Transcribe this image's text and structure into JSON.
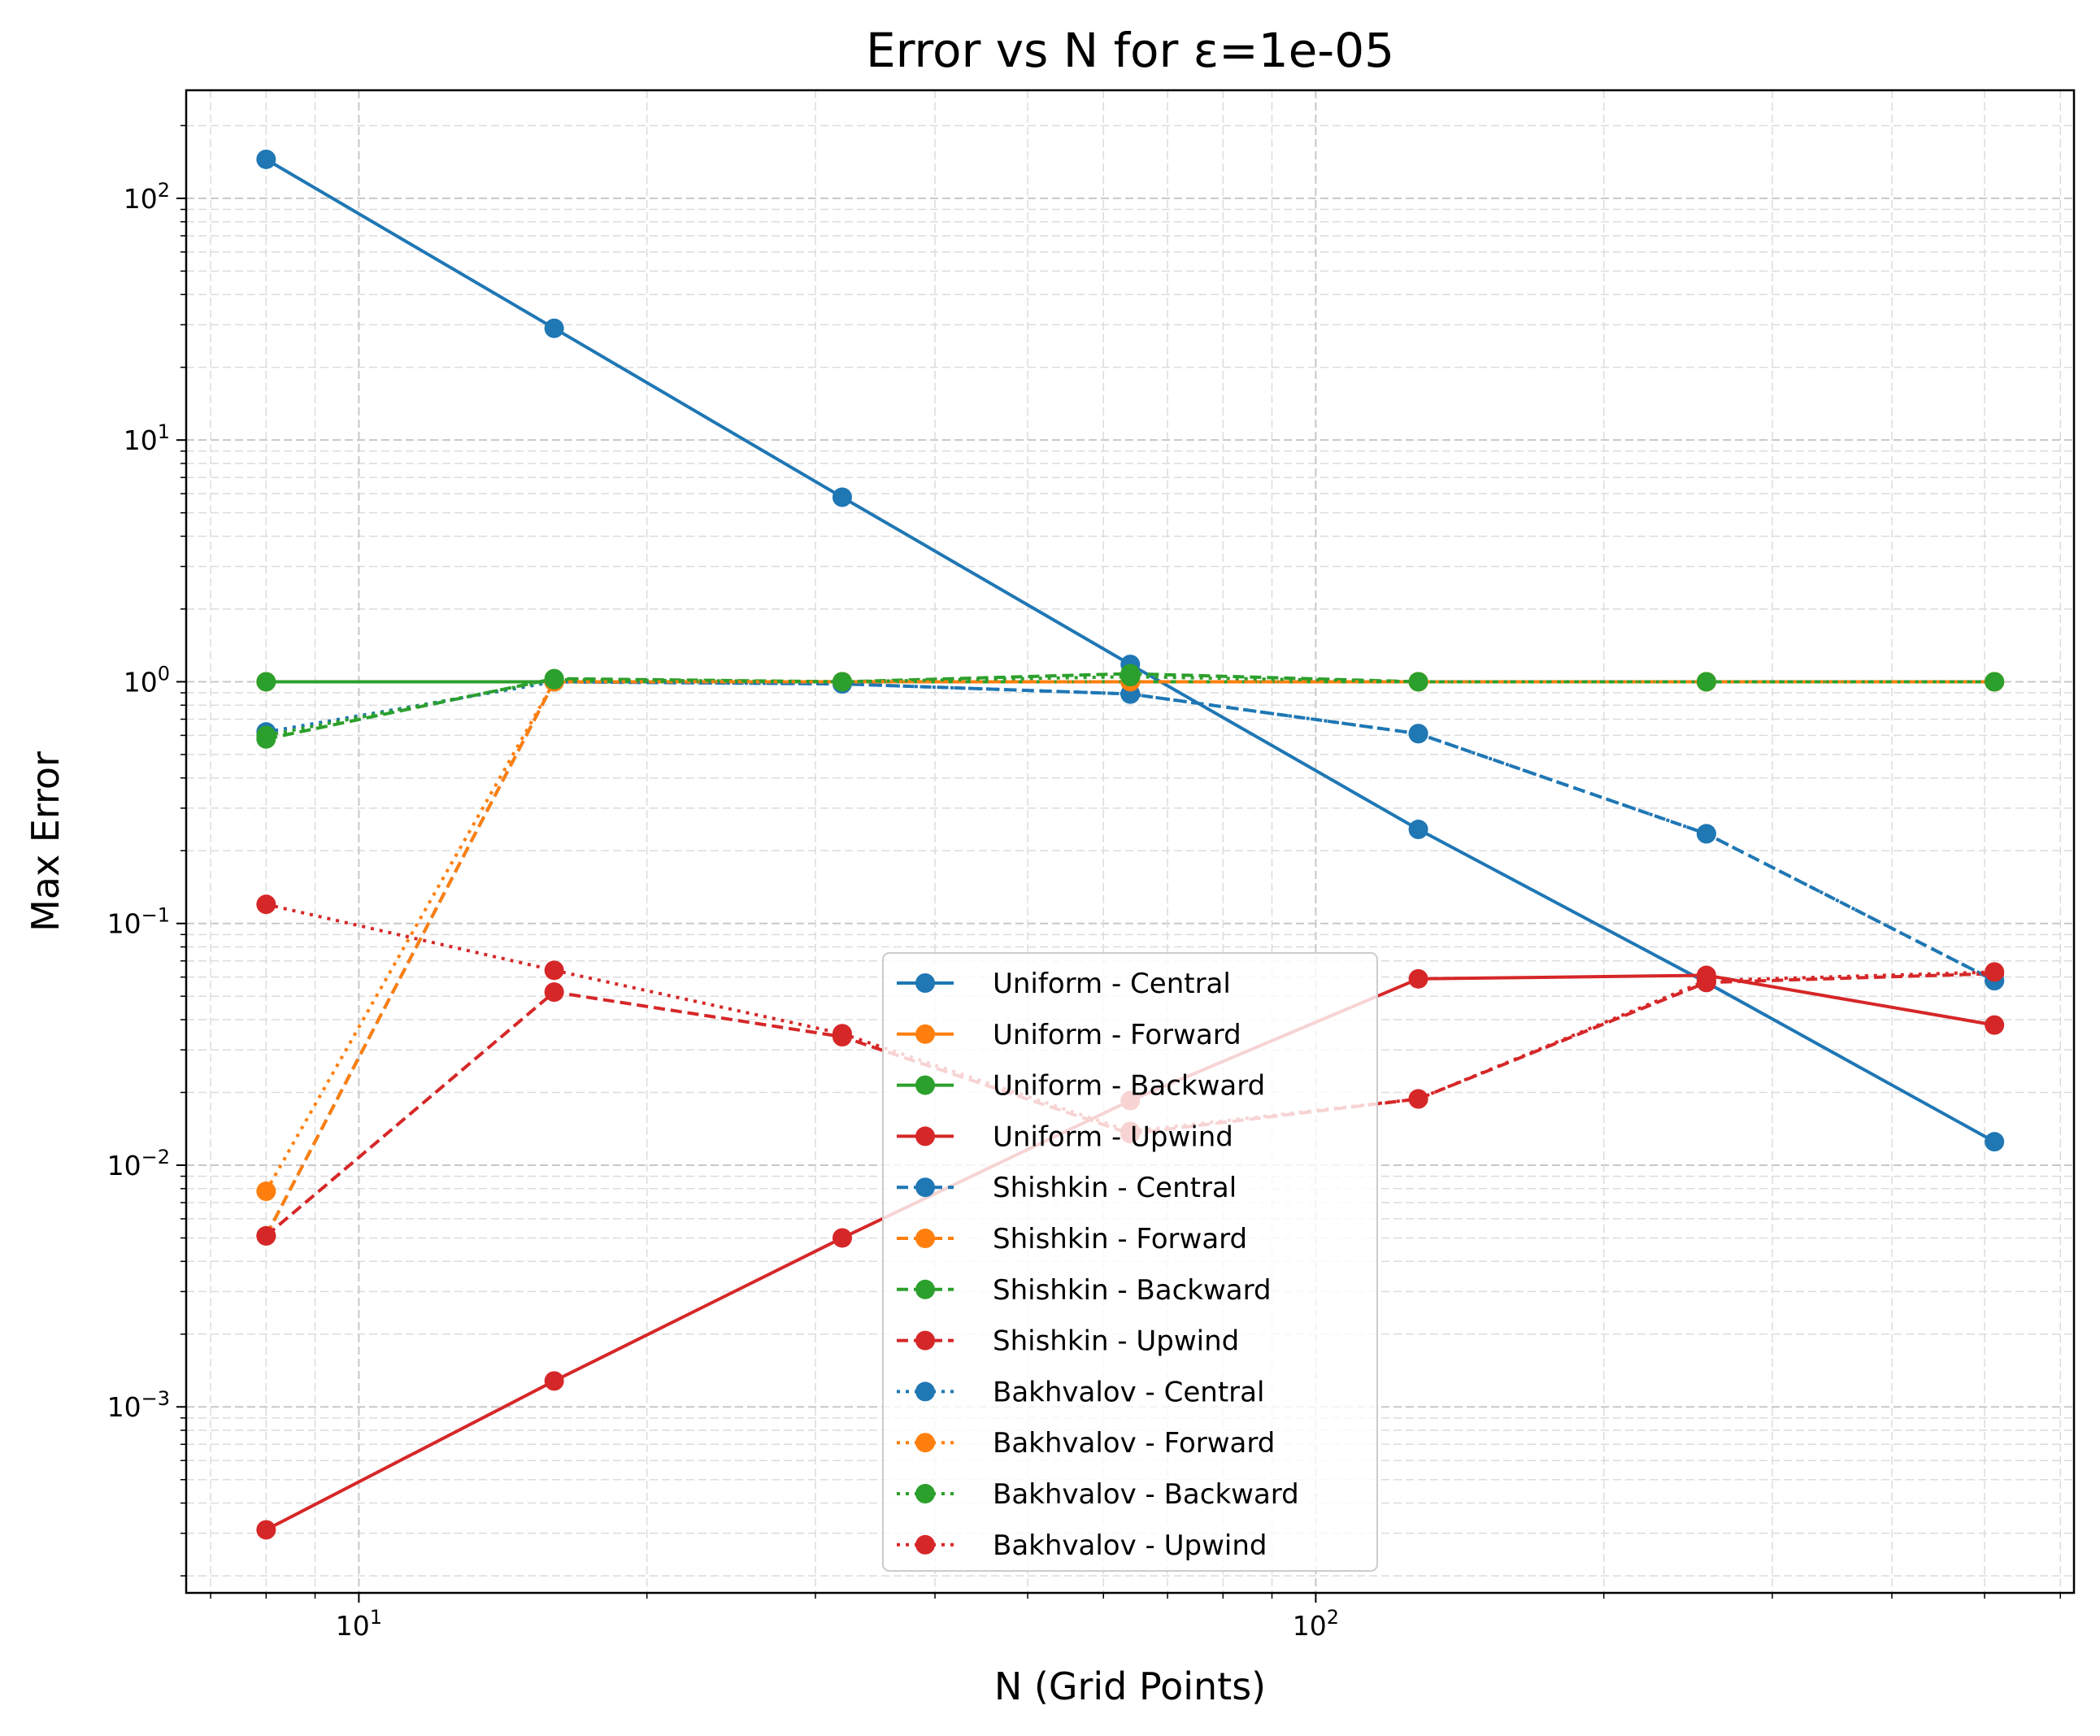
{
  "chart_data": {
    "type": "line",
    "title": "Error vs N for ε=1e-05",
    "xlabel": "N (Grid Points)",
    "ylabel": "Max Error",
    "xscale": "log",
    "yscale": "log",
    "xlim": [
      6.6,
      620
    ],
    "ylim": [
      0.00017,
      280
    ],
    "grid": true,
    "legend_position": "lower center",
    "x_tick_labels": [
      {
        "value": 10,
        "base": "10",
        "exp": "1"
      },
      {
        "value": 100,
        "base": "10",
        "exp": "2"
      }
    ],
    "y_tick_labels": [
      {
        "value": 0.001,
        "base": "10",
        "exp": "−3"
      },
      {
        "value": 0.01,
        "base": "10",
        "exp": "−2"
      },
      {
        "value": 0.1,
        "base": "10",
        "exp": "−1"
      },
      {
        "value": 1,
        "base": "10",
        "exp": "0"
      },
      {
        "value": 10,
        "base": "10",
        "exp": "1"
      },
      {
        "value": 100,
        "base": "10",
        "exp": "2"
      }
    ],
    "x": [
      8,
      16,
      32,
      64,
      128,
      256,
      512
    ],
    "colors": {
      "Central": "#1f77b4",
      "Forward": "#ff7f0e",
      "Backward": "#2ca02c",
      "Upwind": "#d62728"
    },
    "series": [
      {
        "name": "Uniform - Central",
        "color": "#1f77b4",
        "linestyle": "solid",
        "values": [
          145,
          29,
          5.8,
          1.18,
          0.245,
          0.057,
          0.0125
        ]
      },
      {
        "name": "Uniform - Forward",
        "color": "#ff7f0e",
        "linestyle": "solid",
        "values": [
          1.0,
          1.0,
          1.0,
          1.0,
          1.0,
          1.0,
          1.0
        ]
      },
      {
        "name": "Uniform - Backward",
        "color": "#2ca02c",
        "linestyle": "solid",
        "values": [
          1.0,
          1.0,
          1.0,
          1.0,
          1.0,
          1.0,
          1.0
        ]
      },
      {
        "name": "Uniform - Upwind",
        "color": "#d62728",
        "linestyle": "solid",
        "values": [
          0.00031,
          0.00128,
          0.005,
          0.0185,
          0.059,
          0.061,
          0.038
        ]
      },
      {
        "name": "Shishkin - Central",
        "color": "#1f77b4",
        "linestyle": "dashed",
        "values": [
          0.0051,
          1.0,
          0.98,
          0.89,
          0.61,
          0.235,
          0.058
        ]
      },
      {
        "name": "Shishkin - Forward",
        "color": "#ff7f0e",
        "linestyle": "dashed",
        "values": [
          0.0051,
          1.0,
          1.0,
          1.0,
          1.0,
          1.0,
          1.0
        ]
      },
      {
        "name": "Shishkin - Backward",
        "color": "#2ca02c",
        "linestyle": "dashed",
        "values": [
          0.58,
          1.03,
          1.0,
          1.08,
          1.0,
          1.0,
          1.0
        ]
      },
      {
        "name": "Shishkin - Upwind",
        "color": "#d62728",
        "linestyle": "dashed",
        "values": [
          0.0051,
          0.052,
          0.034,
          0.0135,
          0.0188,
          0.057,
          0.062
        ]
      },
      {
        "name": "Bakhvalov - Central",
        "color": "#1f77b4",
        "linestyle": "dotted",
        "values": [
          0.62,
          1.0,
          0.98,
          0.89,
          0.61,
          0.235,
          0.058
        ]
      },
      {
        "name": "Bakhvalov - Forward",
        "color": "#ff7f0e",
        "linestyle": "dotted",
        "values": [
          0.0078,
          1.0,
          1.0,
          1.0,
          1.0,
          1.0,
          1.0
        ]
      },
      {
        "name": "Bakhvalov - Backward",
        "color": "#2ca02c",
        "linestyle": "dotted",
        "values": [
          0.6,
          1.02,
          1.0,
          1.05,
          1.0,
          1.0,
          1.0
        ]
      },
      {
        "name": "Bakhvalov - Upwind",
        "color": "#d62728",
        "linestyle": "dotted",
        "values": [
          0.12,
          0.064,
          0.035,
          0.0138,
          0.0188,
          0.058,
          0.063
        ]
      }
    ]
  }
}
